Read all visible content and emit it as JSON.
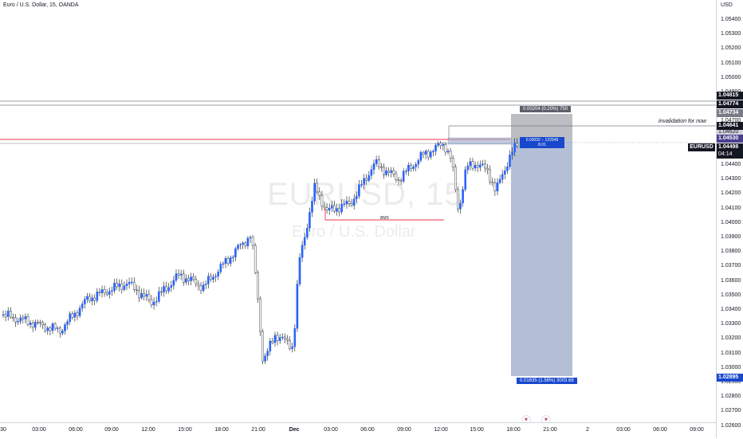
{
  "header": {
    "symbol_title": "Euro / U.S. Dollar, 15, OANDA"
  },
  "watermark": {
    "symbol": "EURUSD, 15",
    "name": "Euro / U.S. Dollar"
  },
  "price_axis": {
    "currency": "USD",
    "ticks": [
      "1.05400",
      "1.05300",
      "1.05200",
      "1.05100",
      "1.05000",
      "1.04900",
      "1.04800",
      "1.04700",
      "1.04600",
      "1.04500",
      "1.04400",
      "1.04300",
      "1.04200",
      "1.04100",
      "1.04000",
      "1.03900",
      "1.03800",
      "1.03700",
      "1.03600",
      "1.03500",
      "1.03400",
      "1.03300",
      "1.03200",
      "1.03100",
      "1.03000",
      "1.02900",
      "1.02800",
      "1.02700",
      "1.02600"
    ],
    "tags": {
      "line_top": "1.04815",
      "line_second": "1.04774",
      "target": "1.04734",
      "invalidation": "1.04641",
      "hidden": "1.04620",
      "entry": "1.04530",
      "current_symbol": "EURUSD",
      "current_price": "1.04498",
      "countdown": "04:14",
      "stop_zone": "1.02895"
    }
  },
  "time_axis": {
    "ticks": [
      "30",
      "03:00",
      "06:00",
      "09:00",
      "12:00",
      "15:00",
      "18:00",
      "21:00",
      "Dec",
      "03:00",
      "06:00",
      "09:00",
      "12:00",
      "15:00",
      "18:00",
      "21:00",
      "2",
      "03:00",
      "06:00",
      "09:00"
    ]
  },
  "annotations": {
    "invalidation": "invalidation for now",
    "bms": "BMS",
    "upper_box": "0.00204 (0.20%) 750",
    "middle_box_line1": "0.00032 − 122549",
    "middle_box_line2": "8.01",
    "lower_box": "0.01635 (1.56%) 3003.68"
  },
  "colors": {
    "bull": "#2962ff",
    "bear": "#ffffff",
    "wick": "#131722",
    "entry_line": "#f23645",
    "position_zone": "#9aa9c9",
    "stop_zone": "#787b86",
    "label_blue": "#1848cc",
    "label_dark": "#131722",
    "label_purple": "#4a3f8f"
  },
  "events": [
    "us-flag-icon",
    "us-flag-icon"
  ]
}
